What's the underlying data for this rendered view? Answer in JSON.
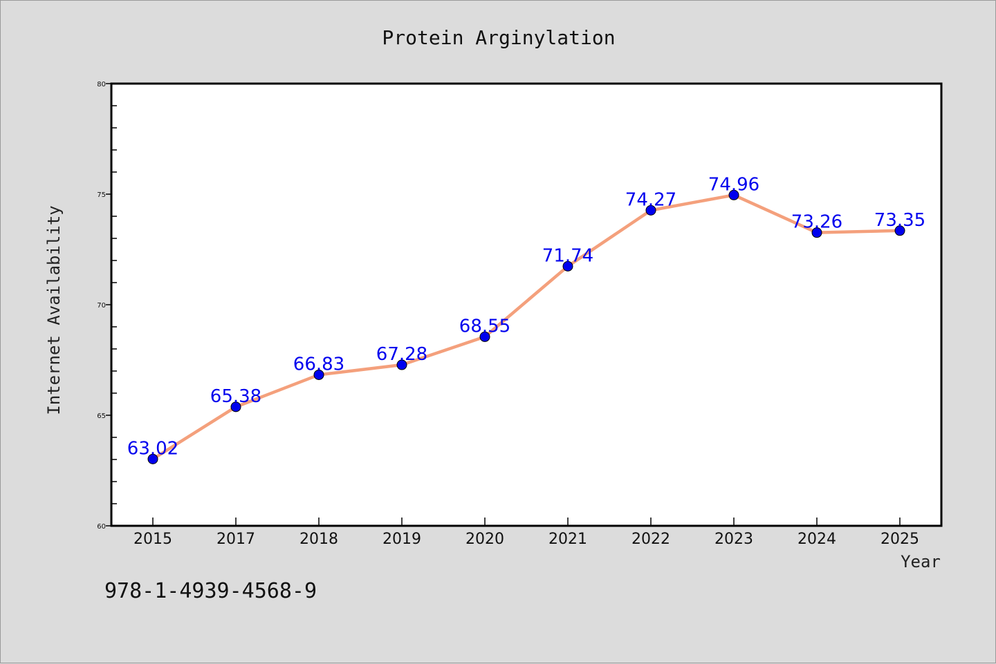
{
  "chart_data": {
    "type": "line",
    "title": "Protein Arginylation",
    "xlabel": "Year",
    "ylabel": "Internet Availability",
    "categories": [
      "2015",
      "2017",
      "2018",
      "2019",
      "2020",
      "2021",
      "2022",
      "2023",
      "2024",
      "2025"
    ],
    "series": [
      {
        "values": [
          63.02,
          65.38,
          66.83,
          67.28,
          68.55,
          71.74,
          74.27,
          74.96,
          73.26,
          73.35
        ],
        "labels": [
          "63.02",
          "65.38",
          "66.83",
          "67.28",
          "68.55",
          "71.74",
          "74.27",
          "74.96",
          "73.26",
          "73.35"
        ],
        "line_color": "#f4a07c",
        "marker_color": "#0000ee"
      }
    ],
    "ylim": [
      60,
      80
    ],
    "yticks": [
      "60",
      "65",
      "70",
      "75",
      "80"
    ],
    "grid": false,
    "legend": "none"
  },
  "footer": {
    "code": "978-1-4939-4568-9"
  }
}
